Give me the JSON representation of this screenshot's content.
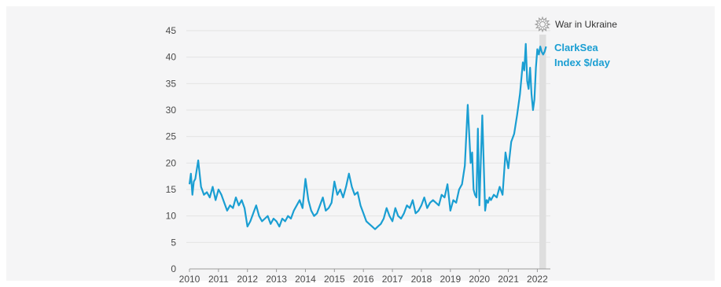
{
  "chart_data": {
    "type": "line",
    "title": "",
    "xlabel": "",
    "ylabel": "",
    "ylim": [
      0,
      45
    ],
    "xlim": [
      2010,
      2022.45
    ],
    "y_ticks": [
      "0",
      "5",
      "10",
      "15",
      "20",
      "25",
      "30",
      "35",
      "40",
      "45"
    ],
    "x_ticks": [
      "2010",
      "2011",
      "2012",
      "2013",
      "2014",
      "2015",
      "2016",
      "2017",
      "2018",
      "2019",
      "2020",
      "2021",
      "2022"
    ],
    "grid": "horizontal",
    "colors": {
      "line": "#1a9ed2",
      "highlight": "#dedede",
      "grid": "#e3e3e3"
    },
    "series": [
      {
        "name": "ClarkSea Index $/day",
        "x": [
          2010.0,
          2010.05,
          2010.1,
          2010.15,
          2010.2,
          2010.3,
          2010.35,
          2010.4,
          2010.5,
          2010.6,
          2010.7,
          2010.8,
          2010.9,
          2011.0,
          2011.1,
          2011.2,
          2011.3,
          2011.4,
          2011.5,
          2011.6,
          2011.7,
          2011.8,
          2011.9,
          2012.0,
          2012.1,
          2012.2,
          2012.3,
          2012.4,
          2012.5,
          2012.6,
          2012.7,
          2012.8,
          2012.9,
          2013.0,
          2013.1,
          2013.2,
          2013.3,
          2013.4,
          2013.5,
          2013.6,
          2013.7,
          2013.8,
          2013.9,
          2014.0,
          2014.1,
          2014.2,
          2014.3,
          2014.4,
          2014.5,
          2014.6,
          2014.7,
          2014.8,
          2014.9,
          2015.0,
          2015.1,
          2015.2,
          2015.3,
          2015.4,
          2015.5,
          2015.6,
          2015.7,
          2015.8,
          2015.9,
          2016.0,
          2016.1,
          2016.2,
          2016.3,
          2016.4,
          2016.5,
          2016.6,
          2016.7,
          2016.8,
          2016.9,
          2017.0,
          2017.1,
          2017.2,
          2017.3,
          2017.4,
          2017.5,
          2017.6,
          2017.7,
          2017.8,
          2017.9,
          2018.0,
          2018.1,
          2018.2,
          2018.3,
          2018.4,
          2018.5,
          2018.6,
          2018.7,
          2018.8,
          2018.9,
          2019.0,
          2019.1,
          2019.2,
          2019.3,
          2019.4,
          2019.5,
          2019.6,
          2019.7,
          2019.75,
          2019.8,
          2019.85,
          2019.9,
          2019.95,
          2020.0,
          2020.1,
          2020.2,
          2020.25,
          2020.3,
          2020.35,
          2020.4,
          2020.5,
          2020.6,
          2020.7,
          2020.8,
          2020.9,
          2021.0,
          2021.1,
          2021.2,
          2021.3,
          2021.4,
          2021.5,
          2021.55,
          2021.6,
          2021.65,
          2021.7,
          2021.75,
          2021.8,
          2021.85,
          2021.9,
          2021.95,
          2022.0,
          2022.05,
          2022.1,
          2022.15,
          2022.2,
          2022.25,
          2022.3
        ],
        "values": [
          16.0,
          18.0,
          14.0,
          16.5,
          17.0,
          20.5,
          18.0,
          15.5,
          14.0,
          14.5,
          13.5,
          15.5,
          13.0,
          15.0,
          14.0,
          12.5,
          11.0,
          12.0,
          11.5,
          13.5,
          12.0,
          13.0,
          11.5,
          8.0,
          9.0,
          10.5,
          12.0,
          10.0,
          9.0,
          9.5,
          10.0,
          8.5,
          9.5,
          9.0,
          8.0,
          9.5,
          9.0,
          10.0,
          9.5,
          11.0,
          12.0,
          13.0,
          11.5,
          17.0,
          13.0,
          11.0,
          10.0,
          10.5,
          12.0,
          13.5,
          11.0,
          11.5,
          12.5,
          16.5,
          14.0,
          15.0,
          13.5,
          15.5,
          18.0,
          15.5,
          14.0,
          14.5,
          12.0,
          10.5,
          9.0,
          8.5,
          8.0,
          7.5,
          8.0,
          8.5,
          9.5,
          11.5,
          10.0,
          9.0,
          11.5,
          10.0,
          9.5,
          10.5,
          12.0,
          11.5,
          13.0,
          10.5,
          11.0,
          12.0,
          13.5,
          11.5,
          12.5,
          13.0,
          12.5,
          12.0,
          14.0,
          13.5,
          16.0,
          11.0,
          13.0,
          12.5,
          15.0,
          16.0,
          19.5,
          31.0,
          20.0,
          22.0,
          15.0,
          14.0,
          13.5,
          26.5,
          12.0,
          29.0,
          11.0,
          13.0,
          12.5,
          13.5,
          13.0,
          14.0,
          13.5,
          15.5,
          14.0,
          22.0,
          19.0,
          24.0,
          25.5,
          29.0,
          33.0,
          39.0,
          37.5,
          42.5,
          35.5,
          34.0,
          38.0,
          33.0,
          30.0,
          32.0,
          38.0,
          41.5,
          40.5,
          42.0,
          41.0,
          40.5,
          41.0,
          42.0
        ]
      }
    ],
    "annotations": [
      {
        "text": "War in Ukraine",
        "x_from": 2022.07,
        "x_to": 2022.3
      }
    ],
    "series_label_lines": [
      "ClarkSea",
      "Index $/day"
    ]
  }
}
